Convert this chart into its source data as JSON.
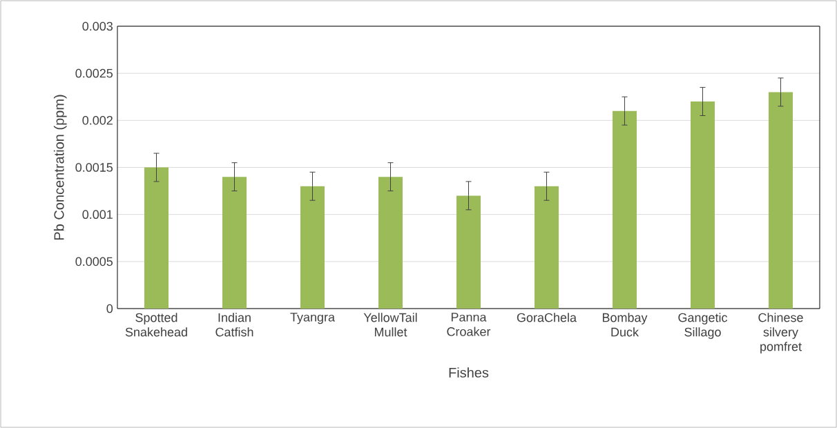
{
  "chart_data": {
    "type": "bar",
    "xlabel": "Fishes",
    "ylabel": "Pb  Concentration (ppm)",
    "categories": [
      "Spotted Snakehead",
      "Indian Catfish",
      "Tyangra",
      "YellowTail Mullet",
      "Panna Croaker",
      "GoraChela",
      "Bombay Duck",
      "Gangetic Sillago",
      "Chinese silvery pomfret"
    ],
    "values": [
      0.0015,
      0.0014,
      0.0013,
      0.0014,
      0.0012,
      0.0013,
      0.0021,
      0.0022,
      0.0023
    ],
    "errors": [
      0.00015,
      0.00015,
      0.00015,
      0.00015,
      0.00015,
      0.00015,
      0.00015,
      0.00015,
      0.00015
    ],
    "color": "#9bbb59",
    "ylim": [
      0,
      0.003
    ],
    "yticks": [
      {
        "value": 0,
        "label": "0"
      },
      {
        "value": 0.0005,
        "label": "0.0005"
      },
      {
        "value": 0.001,
        "label": "0.001"
      },
      {
        "value": 0.0015,
        "label": "0.0015"
      },
      {
        "value": 0.002,
        "label": "0.002"
      },
      {
        "value": 0.0025,
        "label": "0.0025"
      },
      {
        "value": 0.003,
        "label": "0.003"
      }
    ],
    "grid": "y"
  }
}
